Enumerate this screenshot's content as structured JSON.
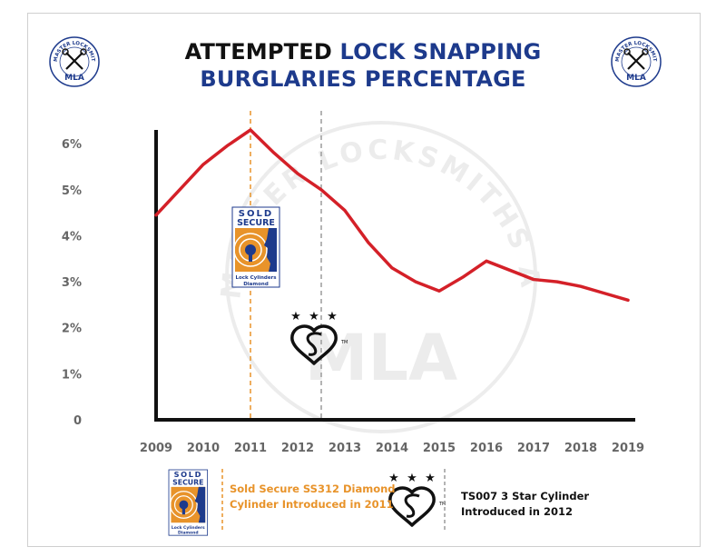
{
  "chart_data": {
    "type": "line",
    "title_part1": "ATTEMPTED ",
    "title_part2": "LOCK SNAPPING",
    "title_line2": "BURGLARIES PERCENTAGE",
    "xlabel": "",
    "ylabel": "",
    "x": [
      "2009",
      "2010",
      "2011",
      "2012",
      "2013",
      "2014",
      "2015",
      "2016",
      "2017",
      "2018",
      "2019"
    ],
    "ylim": [
      0,
      6
    ],
    "yticks": [
      "0",
      "1%",
      "2%",
      "3%",
      "4%",
      "5%",
      "6%"
    ],
    "series": [
      {
        "x": [
          2009,
          2009.5,
          2010,
          2010.5,
          2011,
          2011.5,
          2012,
          2012.5,
          2013,
          2013.5,
          2014,
          2014.5,
          2015,
          2015.5,
          2016,
          2016.5,
          2017,
          2017.5,
          2018,
          2018.5,
          2019
        ],
        "values": [
          4.45,
          5.0,
          5.55,
          5.95,
          6.3,
          5.8,
          5.35,
          5.0,
          4.55,
          3.85,
          3.3,
          3.0,
          2.8,
          3.1,
          3.45,
          3.25,
          3.05,
          3.0,
          2.9,
          2.75,
          2.6
        ],
        "color": "#d42028"
      }
    ],
    "markers": [
      {
        "x": 2011,
        "color": "#e8932a"
      },
      {
        "x": 2012.5,
        "color": "#9b9b9b"
      }
    ],
    "grid": false
  },
  "brand": {
    "name": "MASTER LOCKSMITHS ASSOCIATION",
    "abbr": "MLA",
    "watermark": "MASTER LOCKSMITHS ASSOCIATION"
  },
  "badges": {
    "sold_l1": "SOLD",
    "sold_l2": "SECURE",
    "sold_sub1": "Lock Cylinders",
    "sold_sub2": "Diamond",
    "kite_tm": "TM"
  },
  "legend": {
    "sold_secure_l1": "Sold Secure SS312 Diamond",
    "sold_secure_l2": "Cylinder Introduced in 2011",
    "ts007_l1": "TS007 3 Star Cylinder",
    "ts007_l2": "Introduced in 2012"
  },
  "colors": {
    "line": "#d42028",
    "title_blue": "#1d3a8c",
    "orange": "#e8932a",
    "navy": "#1d3a8c",
    "axis": "#111111",
    "tick": "#666666"
  }
}
